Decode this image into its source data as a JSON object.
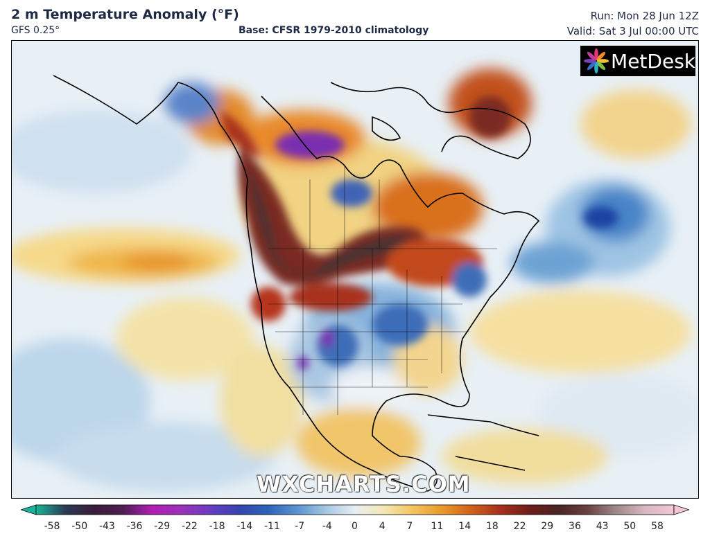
{
  "header": {
    "title": "2 m Temperature Anomaly (°F)",
    "model": "GFS 0.25°",
    "base": "Base: CFSR 1979-2010 climatology",
    "run": "Run: Mon 28 Jun 12Z",
    "valid": "Valid: Sat 3 Jul 00:00 UTC"
  },
  "logo": {
    "text": "MetDesk",
    "icon": "metdesk-flower-icon"
  },
  "watermark": "WXCHARTS.COM",
  "colorbar": {
    "ticks": [
      "-58",
      "-50",
      "-43",
      "-36",
      "-29",
      "-22",
      "-18",
      "-14",
      "-11",
      "-7",
      "-4",
      "0",
      "4",
      "7",
      "11",
      "14",
      "18",
      "22",
      "29",
      "36",
      "43",
      "50",
      "58"
    ],
    "colors": [
      "#18b49a",
      "#2a3c56",
      "#3a1d38",
      "#4e1f55",
      "#b01db3",
      "#9c33b8",
      "#6a3cc2",
      "#3545b0",
      "#2f62b8",
      "#5a93cf",
      "#a6c7e3",
      "#e8eef2",
      "#f6e7b3",
      "#f3c45e",
      "#e99a2a",
      "#d2611a",
      "#a8301c",
      "#6e1d1a",
      "#4a2424",
      "#6b4040",
      "#9e8a8a",
      "#d8b7c0",
      "#f4c6d9"
    ]
  }
}
